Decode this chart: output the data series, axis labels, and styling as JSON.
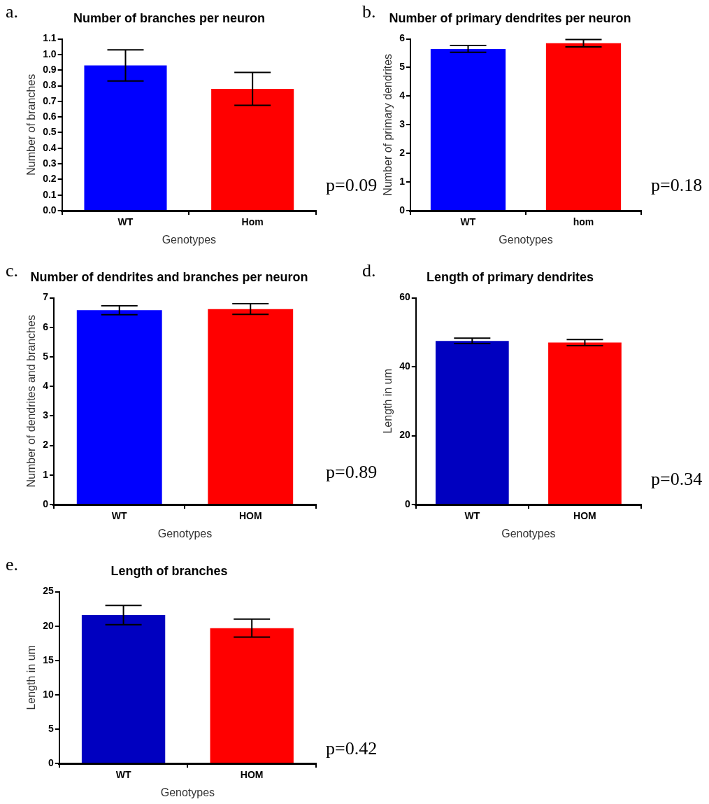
{
  "chart_data": [
    {
      "type": "bar",
      "title": "Number of branches per neuron",
      "xlabel": "Genotypes",
      "ylabel": "Number of branches",
      "categories": [
        "WT",
        "Hom"
      ],
      "values": [
        0.93,
        0.78
      ],
      "errors": [
        0.1,
        0.105
      ],
      "colors": [
        "#0000ff",
        "#ff0000"
      ],
      "ylim": [
        0,
        1.1
      ],
      "yticks": [
        {
          "value": 0,
          "label": "0.0"
        },
        0.1,
        0.2,
        0.3,
        0.4,
        0.5,
        0.6,
        0.7,
        0.8,
        0.9,
        {
          "value": 1,
          "label": "1.0"
        },
        1.1
      ],
      "grid": false,
      "legend": false,
      "annotations": [
        "a.",
        "p=0.09"
      ]
    },
    {
      "type": "bar",
      "title": "Number of primary dendrites per neuron",
      "xlabel": "Genotypes",
      "ylabel": "Number of primary dendrites",
      "categories": [
        "WT",
        "hom"
      ],
      "values": [
        5.65,
        5.85
      ],
      "errors": [
        0.12,
        0.13
      ],
      "colors": [
        "#0000ff",
        "#ff0000"
      ],
      "ylim": [
        0,
        6
      ],
      "yticks": [
        0,
        1,
        2,
        3,
        4,
        5,
        6
      ],
      "grid": false,
      "legend": false,
      "annotations": [
        "b.",
        "p=0.18"
      ]
    },
    {
      "type": "bar",
      "title": "Number of dendrites and branches per neuron",
      "xlabel": "Genotypes",
      "ylabel": "Number of dendrites and branches",
      "categories": [
        "WT",
        "HOM"
      ],
      "values": [
        6.58,
        6.62
      ],
      "errors": [
        0.15,
        0.18
      ],
      "colors": [
        "#0000ff",
        "#ff0000"
      ],
      "ylim": [
        0,
        7
      ],
      "yticks": [
        0,
        1,
        2,
        3,
        4,
        5,
        6,
        7
      ],
      "grid": false,
      "legend": false,
      "annotations": [
        "c.",
        "p=0.89"
      ]
    },
    {
      "type": "bar",
      "title": "Length of primary dendrites",
      "xlabel": "Genotypes",
      "ylabel": "Length in um",
      "categories": [
        "WT",
        "HOM"
      ],
      "values": [
        47.5,
        47
      ],
      "errors": [
        0.8,
        0.9
      ],
      "colors": [
        "#0000c0",
        "#ff0000"
      ],
      "ylim": [
        0,
        60
      ],
      "yticks": [
        0,
        20,
        40,
        60
      ],
      "grid": false,
      "legend": false,
      "annotations": [
        "d.",
        "p=0.34"
      ]
    },
    {
      "type": "bar",
      "title": "Length of branches",
      "xlabel": "Genotypes",
      "ylabel": "Length in um",
      "categories": [
        "WT",
        "HOM"
      ],
      "values": [
        21.6,
        19.7
      ],
      "errors": [
        1.4,
        1.3
      ],
      "colors": [
        "#0000c0",
        "#ff0000"
      ],
      "ylim": [
        0,
        25
      ],
      "yticks": [
        0,
        5,
        10,
        15,
        20,
        25
      ],
      "grid": false,
      "legend": false,
      "annotations": [
        "e.",
        "p=0.42"
      ]
    }
  ]
}
